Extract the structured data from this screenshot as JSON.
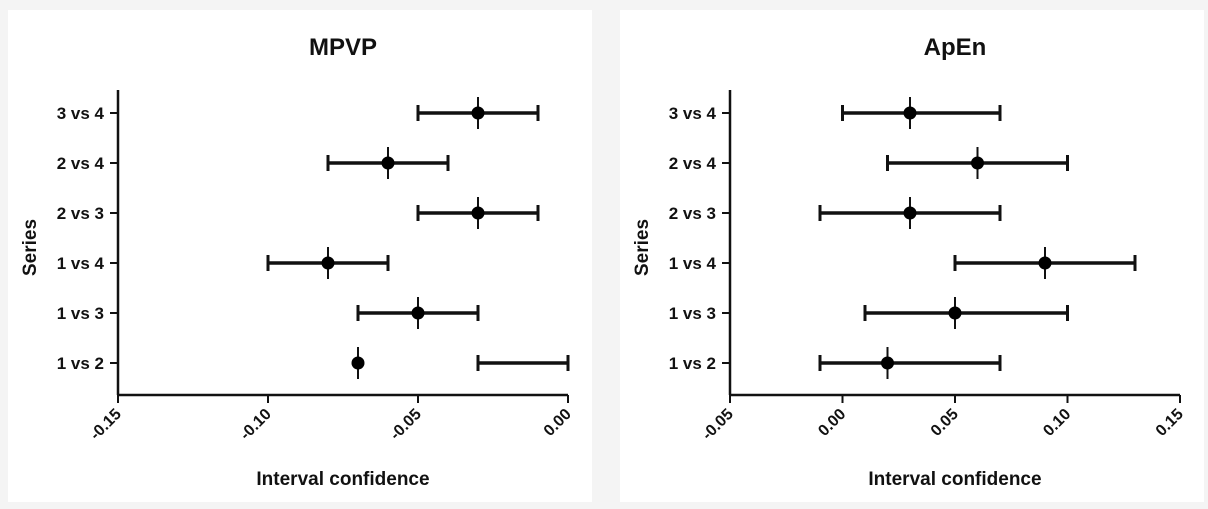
{
  "chart_data": [
    {
      "type": "scatter",
      "title": "MPVP",
      "xlabel": "Interval confidence",
      "ylabel": "Series",
      "categories": [
        "3 vs 4",
        "2 vs 4",
        "2 vs 3",
        "1 vs 4",
        "1 vs 3",
        "1 vs 2"
      ],
      "points": [
        {
          "category": "3 vs 4",
          "estimate": -0.03,
          "low": -0.05,
          "high": -0.01
        },
        {
          "category": "2 vs 4",
          "estimate": -0.06,
          "low": -0.08,
          "high": -0.04
        },
        {
          "category": "2 vs 3",
          "estimate": -0.03,
          "low": -0.05,
          "high": -0.01
        },
        {
          "category": "1 vs 4",
          "estimate": -0.08,
          "low": -0.1,
          "high": -0.06
        },
        {
          "category": "1 vs 3",
          "estimate": -0.05,
          "low": -0.07,
          "high": -0.03
        },
        {
          "category": "1 vs 2",
          "estimate": -0.07,
          "low": -0.03,
          "high": 0.0
        }
      ],
      "xlim": [
        -0.15,
        0.0
      ],
      "xticks": [
        "-0.15",
        "-0.10",
        "-0.05",
        "0.00"
      ]
    },
    {
      "type": "scatter",
      "title": "ApEn",
      "xlabel": "Interval confidence",
      "ylabel": "Series",
      "categories": [
        "3 vs 4",
        "2 vs 4",
        "2 vs 3",
        "1 vs 4",
        "1 vs 3",
        "1 vs 2"
      ],
      "points": [
        {
          "category": "3 vs 4",
          "estimate": 0.03,
          "low": 0.0,
          "high": 0.07
        },
        {
          "category": "2 vs 4",
          "estimate": 0.06,
          "low": 0.02,
          "high": 0.1
        },
        {
          "category": "2 vs 3",
          "estimate": 0.03,
          "low": -0.01,
          "high": 0.07
        },
        {
          "category": "1 vs 4",
          "estimate": 0.09,
          "low": 0.05,
          "high": 0.13
        },
        {
          "category": "1 vs 3",
          "estimate": 0.05,
          "low": 0.01,
          "high": 0.1
        },
        {
          "category": "1 vs 2",
          "estimate": 0.02,
          "low": -0.01,
          "high": 0.07
        }
      ],
      "xlim": [
        -0.05,
        0.15
      ],
      "xticks": [
        "-0.05",
        "0.00",
        "0.05",
        "0.10",
        "0.15"
      ]
    }
  ]
}
